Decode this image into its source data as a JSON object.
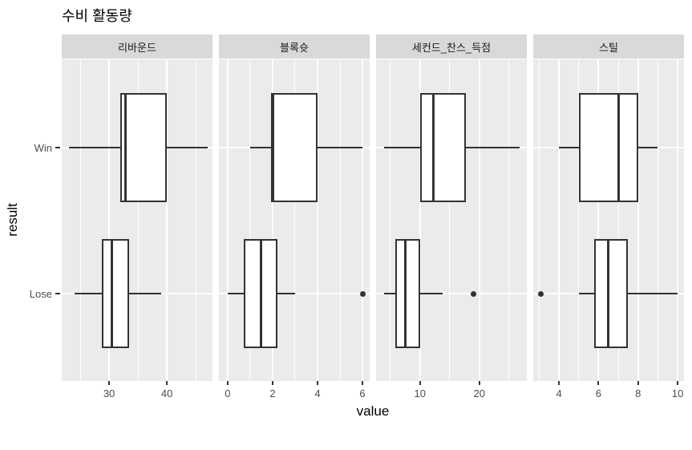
{
  "chart_data": {
    "type": "boxplot",
    "orientation": "horizontal",
    "title": "수비 활동량",
    "xlabel": "value",
    "ylabel": "result",
    "categories": [
      "Win",
      "Lose"
    ],
    "grid": true,
    "legend": false,
    "colors": {
      "panel_background": "#EBEBEB",
      "strip_background": "#D9D9D9",
      "gridline": "#FFFFFF",
      "box_stroke": "#333333",
      "tick_label": "#4D4D4D",
      "text": "#000000"
    },
    "facets": [
      {
        "label": "리바운드",
        "x_domain": [
          21.8,
          47.9
        ],
        "major_ticks": [
          {
            "value": 30,
            "label": "30"
          },
          {
            "value": 40,
            "label": "40"
          }
        ],
        "minor_ticks": [
          25,
          35,
          45
        ],
        "boxes": [
          {
            "category": "Win",
            "min": 23,
            "q1": 32,
            "median": 32.9,
            "q3": 40,
            "max": 47,
            "outliers": []
          },
          {
            "category": "Lose",
            "min": 24,
            "q1": 28.7,
            "median": 30.5,
            "q3": 33.5,
            "max": 39,
            "outliers": []
          }
        ]
      },
      {
        "label": "블록슛",
        "x_domain": [
          -0.39,
          6.32
        ],
        "major_ticks": [
          {
            "value": 0,
            "label": "0"
          },
          {
            "value": 2,
            "label": "2"
          },
          {
            "value": 4,
            "label": "4"
          },
          {
            "value": 6,
            "label": "6"
          }
        ],
        "minor_ticks": [
          1,
          3,
          5
        ],
        "boxes": [
          {
            "category": "Win",
            "min": 1,
            "q1": 2,
            "median": 2,
            "q3": 4,
            "max": 6,
            "outliers": []
          },
          {
            "category": "Lose",
            "min": 0,
            "q1": 0.7,
            "median": 1.5,
            "q3": 2.2,
            "max": 3,
            "outliers": [
              6
            ]
          }
        ]
      },
      {
        "label": "세컨드_찬스_득점",
        "x_domain": [
          2.6,
          28.0
        ],
        "major_ticks": [
          {
            "value": 10,
            "label": "10"
          },
          {
            "value": 20,
            "label": "20"
          }
        ],
        "minor_ticks": [
          5,
          15,
          25
        ],
        "boxes": [
          {
            "category": "Win",
            "min": 4,
            "q1": 10,
            "median": 12.2,
            "q3": 17.8,
            "max": 26.8,
            "outliers": []
          },
          {
            "category": "Lose",
            "min": 4,
            "q1": 5.8,
            "median": 7.5,
            "q3": 10.1,
            "max": 13.8,
            "outliers": [
              19
            ]
          }
        ]
      },
      {
        "label": "스틸",
        "x_domain": [
          2.7,
          10.32
        ],
        "major_ticks": [
          {
            "value": 4,
            "label": "4"
          },
          {
            "value": 6,
            "label": "6"
          },
          {
            "value": 8,
            "label": "8"
          },
          {
            "value": 10,
            "label": "10"
          }
        ],
        "minor_ticks": [
          3,
          5,
          7,
          9
        ],
        "boxes": [
          {
            "category": "Win",
            "min": 4,
            "q1": 5,
            "median": 7,
            "q3": 8,
            "max": 9,
            "outliers": []
          },
          {
            "category": "Lose",
            "min": 5,
            "q1": 5.8,
            "median": 6.5,
            "q3": 7.5,
            "max": 10,
            "outliers": [
              3.1
            ]
          }
        ]
      }
    ]
  }
}
